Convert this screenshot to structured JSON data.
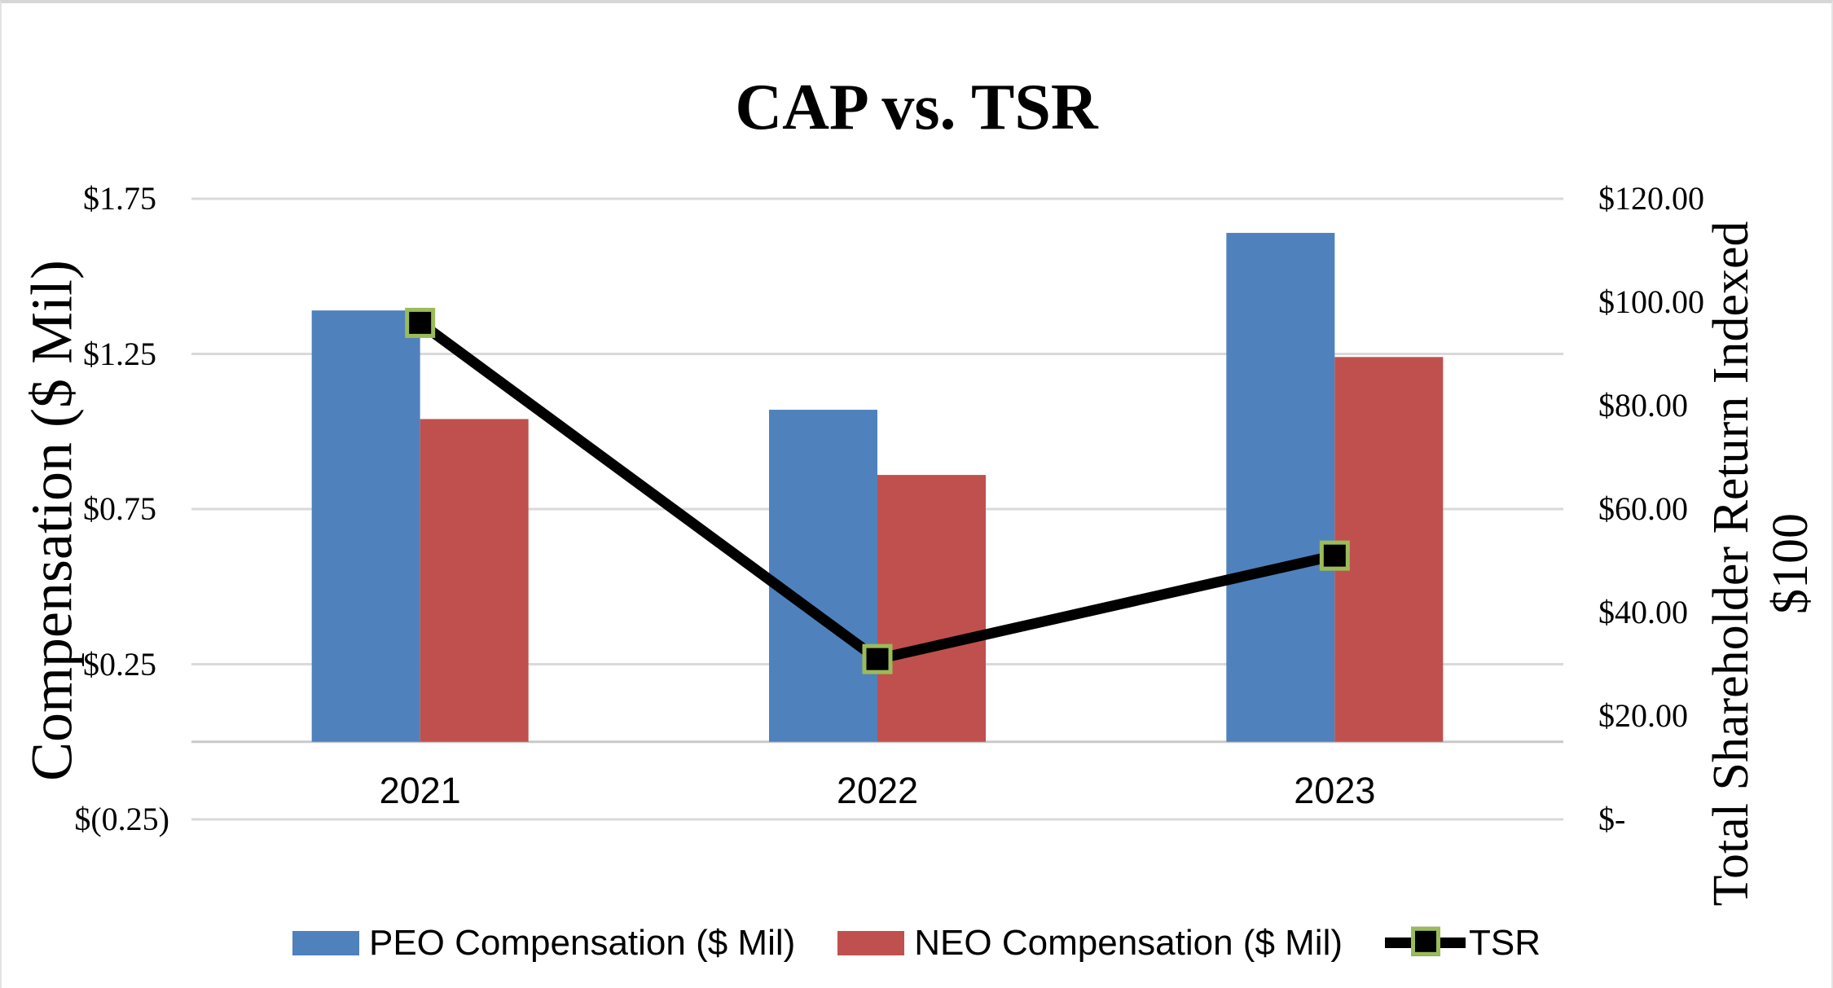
{
  "chart_data": {
    "type": "combo-bar-line",
    "title": "CAP vs. TSR",
    "categories": [
      "2021",
      "2022",
      "2023"
    ],
    "series": [
      {
        "name": "PEO Compensation ($ Mil)",
        "type": "bar",
        "axis": "left",
        "color": "#4F81BD",
        "values": [
          1.39,
          1.07,
          1.64
        ]
      },
      {
        "name": "NEO Compensation ($ Mil)",
        "type": "bar",
        "axis": "left",
        "color": "#C0504D",
        "values": [
          1.04,
          0.86,
          1.24
        ]
      },
      {
        "name": "TSR",
        "type": "line",
        "axis": "right",
        "color": "#000000",
        "marker": "square",
        "marker_fill": "#000000",
        "marker_outline": "#9BBB59",
        "values": [
          96,
          31,
          51
        ]
      }
    ],
    "left_axis": {
      "title": "Compensation ($ Mil)",
      "min": -0.25,
      "max": 1.75,
      "step": 0.5,
      "tick_values": [
        1.75,
        1.25,
        0.75,
        0.25,
        -0.25
      ],
      "tick_labels": [
        "$1.75",
        "$1.25",
        "$0.75",
        "$0.25",
        "$(0.25)"
      ]
    },
    "right_axis": {
      "title_lines": [
        "Total Shareholder Return Indexed",
        "$100"
      ],
      "min": 0,
      "max": 120,
      "step": 20,
      "tick_values": [
        120,
        100,
        80,
        60,
        40,
        20,
        0
      ],
      "tick_labels": [
        "$120.00",
        "$100.00",
        "$80.00",
        "$60.00",
        "$40.00",
        "$20.00",
        "$-"
      ]
    },
    "legend_position": "bottom",
    "grid": true,
    "colors": {
      "gridline": "#D9D9D9",
      "axis_line": "#C9C9C9",
      "text": "#000000",
      "background": "#FFFFFF",
      "border": "#D7D7D7"
    }
  }
}
